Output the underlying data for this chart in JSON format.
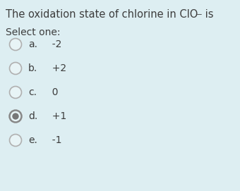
{
  "background_color": "#ddeef2",
  "title_main": "The oxidation state of chlorine in ClO",
  "title_superscript": "−",
  "title_suffix": " is",
  "title_color": "#3d3d3d",
  "title_fontsize": 10.5,
  "select_label": "Select one:",
  "select_color": "#3d3d3d",
  "select_fontsize": 10,
  "options": [
    {
      "label": "a.",
      "value": "  -2",
      "selected": false
    },
    {
      "label": "b.",
      "value": "  +2",
      "selected": false
    },
    {
      "label": "c.",
      "value": "  0",
      "selected": false
    },
    {
      "label": "d.",
      "value": "  +1",
      "selected": true
    },
    {
      "label": "e.",
      "value": "  -1",
      "selected": false
    }
  ],
  "option_fontsize": 10,
  "option_color": "#3d3d3d",
  "radio_empty_edgecolor": "#b0b0b0",
  "radio_empty_facecolor": "#e8f4f6",
  "radio_selected_edgecolor": "#888888",
  "radio_selected_facecolor": "#e8f4f6",
  "radio_dot_color": "#777777",
  "figwidth": 3.4,
  "figheight": 2.71,
  "dpi": 100
}
